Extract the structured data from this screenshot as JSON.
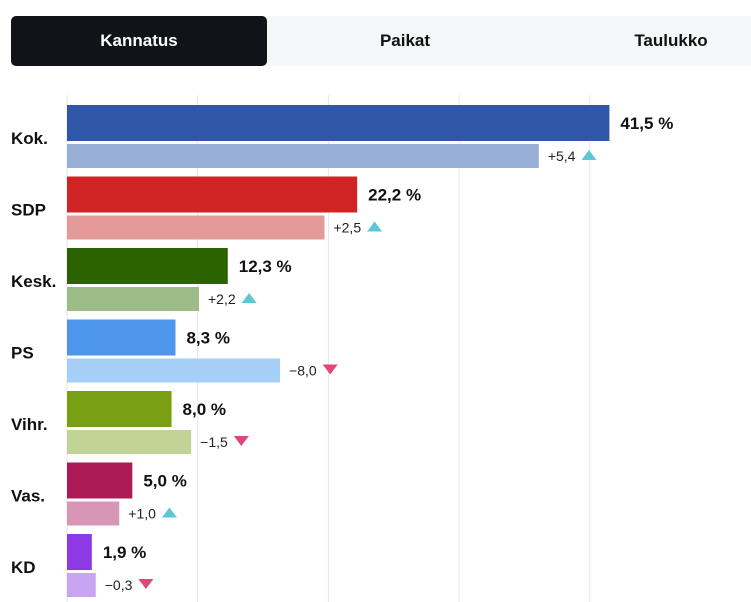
{
  "tabs": [
    {
      "label": "Kannatus",
      "active": true
    },
    {
      "label": "Paikat",
      "active": false
    },
    {
      "label": "Taulukko",
      "active": false
    }
  ],
  "chart_data": {
    "type": "bar",
    "orientation": "horizontal",
    "categories": [
      "Kok.",
      "SDP",
      "Kesk.",
      "PS",
      "Vihr.",
      "Vas.",
      "KD"
    ],
    "series": [
      {
        "values": [
          41.5,
          22.2,
          12.3,
          8.3,
          8.0,
          5.0,
          1.9
        ],
        "value_labels": [
          "41,5 %",
          "22,2 %",
          "12,3 %",
          "8,3 %",
          "8,0 %",
          "5,0 %",
          "1,9 %"
        ]
      },
      {
        "values": [
          36.1,
          19.7,
          10.1,
          16.3,
          9.5,
          4.0,
          2.2
        ]
      }
    ],
    "changes": [
      5.4,
      2.5,
      2.2,
      -8.0,
      -1.5,
      1.0,
      -0.3
    ],
    "change_labels": [
      "+5,4",
      "+2,5",
      "+2,2",
      "−8,0",
      "−1,5",
      "+1,0",
      "−0,3"
    ],
    "colors": [
      "#3056a8",
      "#d12424",
      "#2b6300",
      "#4e96ec",
      "#78a012",
      "#ad1a55",
      "#8c3ae6"
    ],
    "previous_colors": [
      "#98b0d8",
      "#e59a9a",
      "#9cbd88",
      "#a6cff8",
      "#c2d398",
      "#d896b6",
      "#c9a4f2"
    ],
    "up_color": "#5fc6d8",
    "down_color": "#e04677",
    "xlim": [
      0,
      45
    ],
    "grid": true
  }
}
